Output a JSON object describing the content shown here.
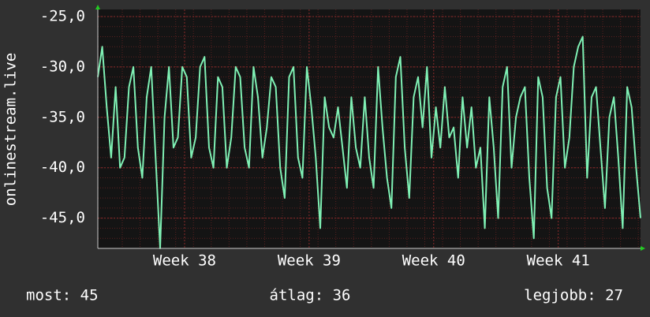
{
  "chart_data": {
    "type": "line",
    "ylabel": "onlinestream.live",
    "color": "#7ff0b4",
    "values": [
      -31,
      -28,
      -34,
      -39,
      -32,
      -40,
      -39,
      -32,
      -30,
      -38,
      -41,
      -33,
      -30,
      -39,
      -48,
      -35,
      -30,
      -38,
      -37,
      -30,
      -31,
      -39,
      -37,
      -30,
      -29,
      -38,
      -40,
      -31,
      -32,
      -40,
      -37,
      -30,
      -31,
      -38,
      -40,
      -30,
      -33,
      -39,
      -36,
      -31,
      -32,
      -40,
      -43,
      -31,
      -30,
      -39,
      -41,
      -30,
      -34,
      -39,
      -46,
      -33,
      -36,
      -37,
      -34,
      -38,
      -42,
      -33,
      -38,
      -40,
      -33,
      -39,
      -42,
      -30,
      -36,
      -41,
      -44,
      -31,
      -29,
      -38,
      -43,
      -33,
      -31,
      -36,
      -30,
      -39,
      -34,
      -38,
      -32,
      -37,
      -36,
      -41,
      -33,
      -38,
      -34,
      -40,
      -38,
      -46,
      -33,
      -38,
      -45,
      -32,
      -30,
      -40,
      -35,
      -33,
      -32,
      -41,
      -47,
      -31,
      -33,
      -42,
      -45,
      -33,
      -31,
      -40,
      -37,
      -30,
      -28,
      -27,
      -41,
      -33,
      -32,
      -38,
      -44,
      -35,
      -33,
      -39,
      -46,
      -32,
      -34,
      -40,
      -45
    ],
    "xlim": [
      0,
      122
    ],
    "xticks": [
      {
        "value": 19.5,
        "label": "Week 38"
      },
      {
        "value": 47.5,
        "label": "Week 39"
      },
      {
        "value": 75.5,
        "label": "Week 40"
      },
      {
        "value": 103.5,
        "label": "Week 41"
      }
    ],
    "ylim": [
      -48,
      -24.3
    ],
    "yticks": [
      {
        "value": -25,
        "label": "-25,0"
      },
      {
        "value": -30,
        "label": "-30,0"
      },
      {
        "value": -35,
        "label": "-35,0"
      },
      {
        "value": -40,
        "label": "-40,0"
      },
      {
        "value": -45,
        "label": "-45,0"
      }
    ],
    "grid": true,
    "footer": {
      "current": "most: 45",
      "average": "átlag: 36",
      "best": "legjobb: 27"
    }
  }
}
